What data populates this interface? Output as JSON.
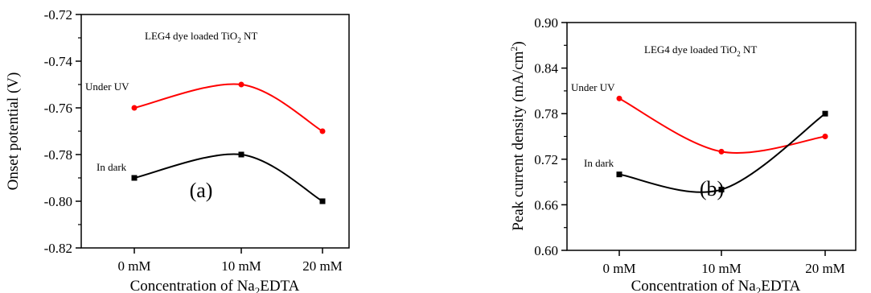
{
  "chart_data": [
    {
      "type": "line",
      "panel": "(a)",
      "annotation": "LEG4 dye loaded TiO",
      "annotation_sub": "2",
      "annotation_tail": " NT",
      "categories": [
        "0 mM",
        "10 mM",
        "20 mM"
      ],
      "xlabel": "Concentration of Na",
      "xlabel_sub": "2",
      "xlabel_tail": "EDTA",
      "ylabel": "Onset potential (V)",
      "ylim": [
        -0.82,
        -0.72
      ],
      "yticks": [
        "-0.72",
        "-0.74",
        "-0.76",
        "-0.78",
        "-0.80",
        "-0.82"
      ],
      "ytick_values": [
        -0.72,
        -0.74,
        -0.76,
        -0.78,
        -0.8,
        -0.82
      ],
      "series": [
        {
          "name": "Under UV",
          "values": [
            -0.76,
            -0.75,
            -0.77
          ],
          "color": "#ff0000",
          "marker": "circle"
        },
        {
          "name": "In dark",
          "values": [
            -0.79,
            -0.78,
            -0.8
          ],
          "color": "#000000",
          "marker": "square"
        }
      ]
    },
    {
      "type": "line",
      "panel": "(b)",
      "annotation": "LEG4 dye loaded TiO",
      "annotation_sub": "2",
      "annotation_tail": " NT",
      "categories": [
        "0 mM",
        "10 mM",
        "20 mM"
      ],
      "xlabel": "Concentration of Na",
      "xlabel_sub": "2",
      "xlabel_tail": "EDTA",
      "ylabel": "Peak current density (mA/cm",
      "ylabel_sup": "2",
      "ylabel_tail": ")",
      "ylim": [
        0.6,
        0.9
      ],
      "yticks": [
        "0.90",
        "0.84",
        "0.78",
        "0.72",
        "0.66",
        "0.60"
      ],
      "ytick_values": [
        0.9,
        0.84,
        0.78,
        0.72,
        0.66,
        0.6
      ],
      "series": [
        {
          "name": "Under UV",
          "values": [
            0.8,
            0.73,
            0.75
          ],
          "color": "#ff0000",
          "marker": "circle"
        },
        {
          "name": "In dark",
          "values": [
            0.7,
            0.68,
            0.78
          ],
          "color": "#000000",
          "marker": "square"
        }
      ]
    }
  ]
}
